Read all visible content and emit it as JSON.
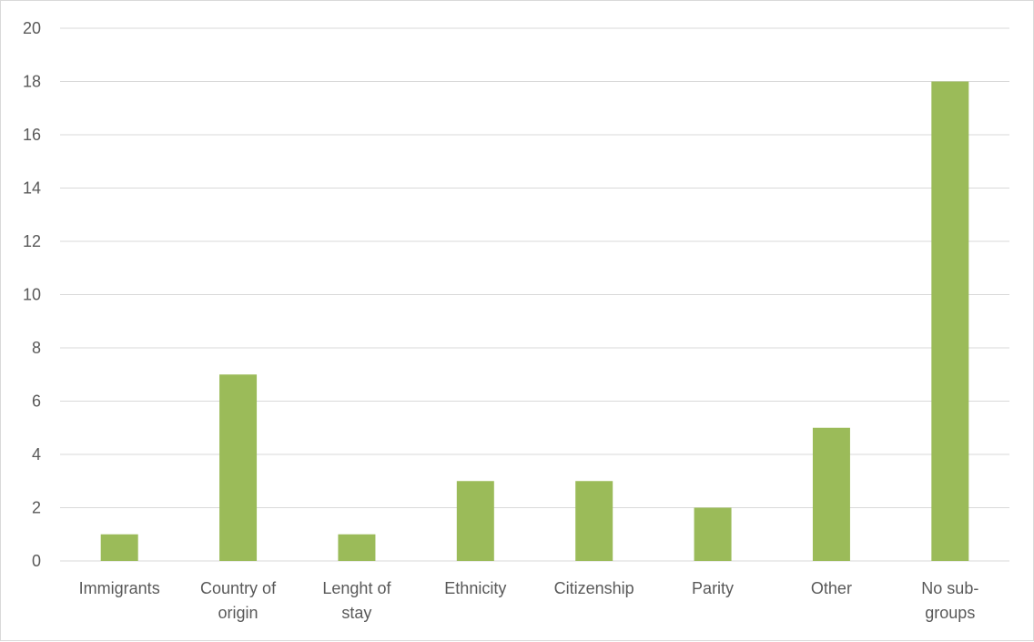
{
  "chart_data": {
    "type": "bar",
    "title": "",
    "xlabel": "",
    "ylabel": "",
    "categories": [
      [
        "Immigrants"
      ],
      [
        "Country of",
        "origin"
      ],
      [
        "Lenght of",
        "stay"
      ],
      [
        "Ethnicity"
      ],
      [
        "Citizenship"
      ],
      [
        "Parity"
      ],
      [
        "Other"
      ],
      [
        "No sub-",
        "groups"
      ]
    ],
    "values": [
      1,
      7,
      1,
      3,
      3,
      2,
      5,
      18
    ],
    "ylim": [
      0,
      20
    ],
    "yticks": [
      0,
      2,
      4,
      6,
      8,
      10,
      12,
      14,
      16,
      18,
      20
    ],
    "grid": true,
    "legend": "none",
    "colors": {
      "bar": "#9BBB59",
      "grid": "#d9d9d9",
      "text": "#595959"
    }
  }
}
